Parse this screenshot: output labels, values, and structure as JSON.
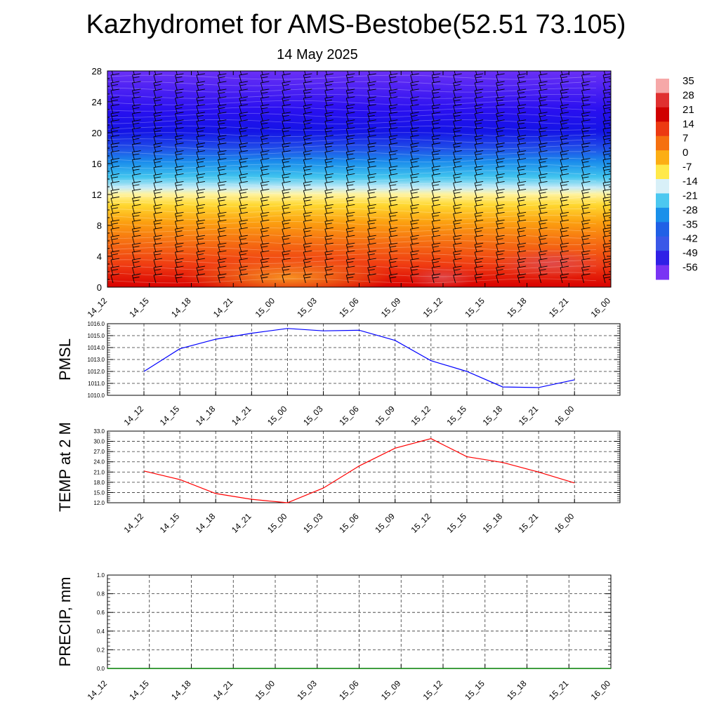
{
  "header": {
    "title": "Kazhydromet for AMS-Bestobe(52.51 73.105)",
    "subtitle": "14 May 2025"
  },
  "chart_data": [
    {
      "type": "heatmap",
      "x_labels": [
        "14_12",
        "14_15",
        "14_18",
        "14_21",
        "15_00",
        "15_03",
        "15_06",
        "15_09",
        "15_12",
        "15_15",
        "15_18",
        "15_21",
        "16_00"
      ],
      "y_ticks": [
        0,
        4,
        8,
        12,
        16,
        20,
        24,
        28
      ],
      "ylim": [
        0,
        28
      ],
      "colorbar": {
        "labels": [
          "35",
          "28",
          "21",
          "14",
          "7",
          "0",
          "-7",
          "-14",
          "-21",
          "-28",
          "-35",
          "-42",
          "-49",
          "-56"
        ]
      },
      "wind_barbs": true
    },
    {
      "type": "line",
      "ylabel": "PMSL",
      "x_labels": [
        "14_12",
        "14_15",
        "14_18",
        "14_21",
        "15_00",
        "15_03",
        "15_06",
        "15_09",
        "15_12",
        "15_15",
        "15_18",
        "15_21",
        "16_00"
      ],
      "y_ticks": [
        "1010.0",
        "1011.0",
        "1012.0",
        "1013.0",
        "1014.0",
        "1015.0",
        "1016.0"
      ],
      "ylim": [
        1010,
        1016
      ],
      "series": [
        {
          "values": [
            1012.0,
            1013.9,
            1014.7,
            1015.2,
            1015.6,
            1015.4,
            1015.45,
            1014.6,
            1012.9,
            1012.0,
            1010.7,
            1010.65,
            1011.3
          ]
        }
      ],
      "color": "#0000ff",
      "grid": true
    },
    {
      "type": "line",
      "ylabel": "TEMP at 2 M",
      "x_labels": [
        "14_12",
        "14_15",
        "14_18",
        "14_21",
        "15_00",
        "15_03",
        "15_06",
        "15_09",
        "15_12",
        "15_15",
        "15_18",
        "15_21",
        "16_00"
      ],
      "y_ticks": [
        "12.0",
        "15.0",
        "18.0",
        "21.0",
        "24.0",
        "27.0",
        "30.0",
        "33.0"
      ],
      "ylim": [
        12,
        33
      ],
      "series": [
        {
          "values": [
            21.3,
            18.8,
            14.7,
            13.0,
            12.0,
            16.3,
            22.8,
            28.0,
            30.8,
            25.5,
            23.8,
            21.0,
            17.8
          ]
        }
      ],
      "color": "#ff0000",
      "grid": true
    },
    {
      "type": "line",
      "ylabel": "PRECIP, mm",
      "x_labels": [
        "14_12",
        "14_15",
        "14_18",
        "14_21",
        "15_00",
        "15_03",
        "15_06",
        "15_09",
        "15_12",
        "15_15",
        "15_18",
        "15_21",
        "16_00"
      ],
      "y_ticks": [
        "0.0",
        "0.2",
        "0.4",
        "0.6",
        "0.8",
        "1.0"
      ],
      "ylim": [
        0,
        1
      ],
      "series": [
        {
          "values": [
            0,
            0,
            0,
            0,
            0,
            0,
            0,
            0,
            0,
            0,
            0,
            0,
            0
          ]
        }
      ],
      "color": "#007f00",
      "grid": true
    }
  ]
}
